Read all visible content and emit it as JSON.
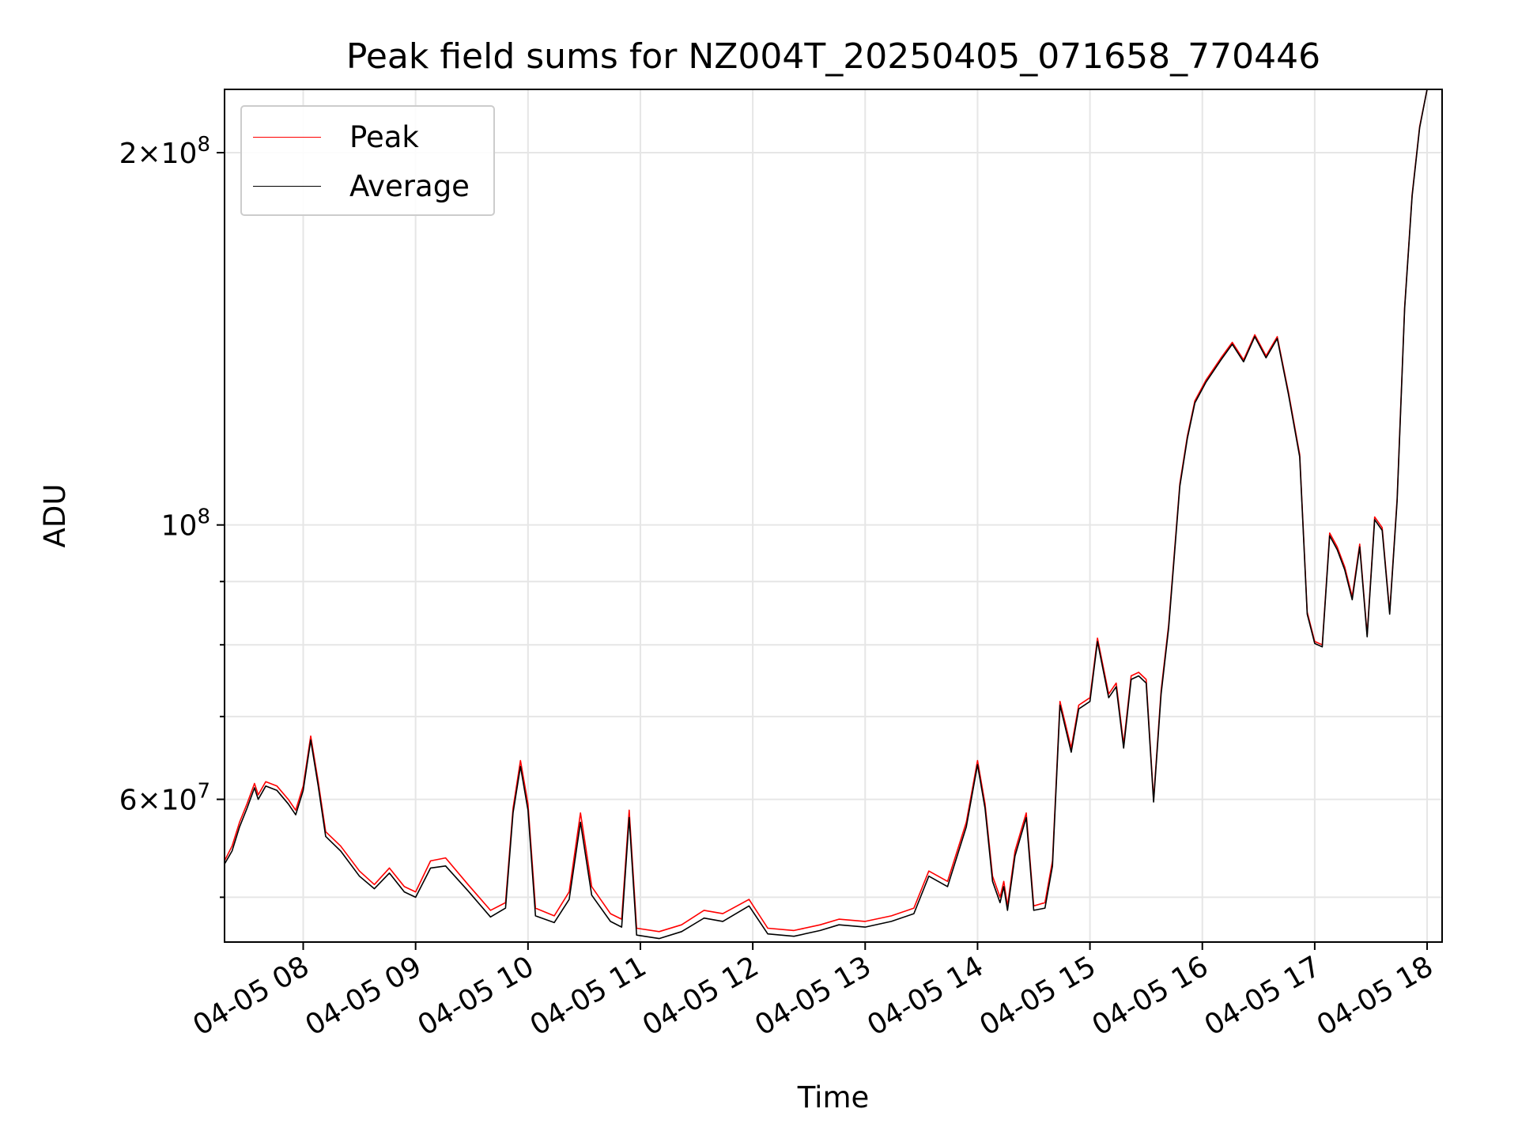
{
  "chart_data": {
    "type": "line",
    "title": "Peak field sums for NZ004T_20250405_071658_770446",
    "xlabel": "Time",
    "ylabel": "ADU",
    "y_scale": "log",
    "ylim": [
      46000000,
      225000000
    ],
    "xlim": [
      "2025-04-05 07:18",
      "2025-04-05 18:08"
    ],
    "x_ticks": [
      {
        "label": "04-05 08",
        "t": "2025-04-05 08:00"
      },
      {
        "label": "04-05 09",
        "t": "2025-04-05 09:00"
      },
      {
        "label": "04-05 10",
        "t": "2025-04-05 10:00"
      },
      {
        "label": "04-05 11",
        "t": "2025-04-05 11:00"
      },
      {
        "label": "04-05 12",
        "t": "2025-04-05 12:00"
      },
      {
        "label": "04-05 13",
        "t": "2025-04-05 13:00"
      },
      {
        "label": "04-05 14",
        "t": "2025-04-05 14:00"
      },
      {
        "label": "04-05 15",
        "t": "2025-04-05 15:00"
      },
      {
        "label": "04-05 16",
        "t": "2025-04-05 16:00"
      },
      {
        "label": "04-05 17",
        "t": "2025-04-05 17:00"
      },
      {
        "label": "04-05 18",
        "t": "2025-04-05 18:00"
      }
    ],
    "y_ticks": [
      {
        "base": "6",
        "exp": "7",
        "value": 60000000
      },
      {
        "base": "",
        "exp": "8",
        "value": 100000000
      },
      {
        "base": "2",
        "exp": "8",
        "value": 200000000
      }
    ],
    "y_minor_ticks": [
      50000000,
      70000000,
      80000000,
      90000000
    ],
    "grid": true,
    "legend_position": "upper-left",
    "series": [
      {
        "name": "Peak",
        "color": "#ff0000",
        "points": [
          [
            "2025-04-05 07:18",
            53500000
          ],
          [
            "2025-04-05 07:22",
            55000000
          ],
          [
            "2025-04-05 07:26",
            57500000
          ],
          [
            "2025-04-05 07:30",
            59500000
          ],
          [
            "2025-04-05 07:34",
            61800000
          ],
          [
            "2025-04-05 07:36",
            60500000
          ],
          [
            "2025-04-05 07:40",
            62000000
          ],
          [
            "2025-04-05 07:46",
            61500000
          ],
          [
            "2025-04-05 07:52",
            60000000
          ],
          [
            "2025-04-05 07:56",
            58800000
          ],
          [
            "2025-04-05 08:00",
            61500000
          ],
          [
            "2025-04-05 08:04",
            67500000
          ],
          [
            "2025-04-05 08:08",
            62000000
          ],
          [
            "2025-04-05 08:12",
            56500000
          ],
          [
            "2025-04-05 08:20",
            55000000
          ],
          [
            "2025-04-05 08:30",
            52500000
          ],
          [
            "2025-04-05 08:38",
            51200000
          ],
          [
            "2025-04-05 08:46",
            52800000
          ],
          [
            "2025-04-05 08:54",
            51000000
          ],
          [
            "2025-04-05 09:00",
            50500000
          ],
          [
            "2025-04-05 09:08",
            53500000
          ],
          [
            "2025-04-05 09:16",
            53800000
          ],
          [
            "2025-04-05 09:28",
            51200000
          ],
          [
            "2025-04-05 09:40",
            48800000
          ],
          [
            "2025-04-05 09:48",
            49500000
          ],
          [
            "2025-04-05 09:52",
            59000000
          ],
          [
            "2025-04-05 09:56",
            64500000
          ],
          [
            "2025-04-05 10:00",
            59500000
          ],
          [
            "2025-04-05 10:04",
            49000000
          ],
          [
            "2025-04-05 10:14",
            48300000
          ],
          [
            "2025-04-05 10:22",
            50500000
          ],
          [
            "2025-04-05 10:28",
            58500000
          ],
          [
            "2025-04-05 10:34",
            51000000
          ],
          [
            "2025-04-05 10:44",
            48500000
          ],
          [
            "2025-04-05 10:50",
            48000000
          ],
          [
            "2025-04-05 10:54",
            58800000
          ],
          [
            "2025-04-05 10:58",
            47200000
          ],
          [
            "2025-04-05 11:10",
            46900000
          ],
          [
            "2025-04-05 11:22",
            47500000
          ],
          [
            "2025-04-05 11:34",
            48800000
          ],
          [
            "2025-04-05 11:44",
            48500000
          ],
          [
            "2025-04-05 11:58",
            49800000
          ],
          [
            "2025-04-05 12:08",
            47200000
          ],
          [
            "2025-04-05 12:22",
            47000000
          ],
          [
            "2025-04-05 12:36",
            47500000
          ],
          [
            "2025-04-05 12:46",
            48000000
          ],
          [
            "2025-04-05 13:00",
            47800000
          ],
          [
            "2025-04-05 13:14",
            48300000
          ],
          [
            "2025-04-05 13:26",
            49000000
          ],
          [
            "2025-04-05 13:34",
            52500000
          ],
          [
            "2025-04-05 13:44",
            51500000
          ],
          [
            "2025-04-05 13:54",
            57500000
          ],
          [
            "2025-04-05 14:00",
            64500000
          ],
          [
            "2025-04-05 14:04",
            59500000
          ],
          [
            "2025-04-05 14:08",
            52000000
          ],
          [
            "2025-04-05 14:12",
            50000000
          ],
          [
            "2025-04-05 14:14",
            51500000
          ],
          [
            "2025-04-05 14:16",
            49200000
          ],
          [
            "2025-04-05 14:20",
            54500000
          ],
          [
            "2025-04-05 14:26",
            58500000
          ],
          [
            "2025-04-05 14:30",
            49200000
          ],
          [
            "2025-04-05 14:36",
            49500000
          ],
          [
            "2025-04-05 14:40",
            53500000
          ],
          [
            "2025-04-05 14:44",
            72000000
          ],
          [
            "2025-04-05 14:50",
            66000000
          ],
          [
            "2025-04-05 14:54",
            71500000
          ],
          [
            "2025-04-05 15:00",
            72500000
          ],
          [
            "2025-04-05 15:04",
            81000000
          ],
          [
            "2025-04-05 15:10",
            73000000
          ],
          [
            "2025-04-05 15:14",
            74500000
          ],
          [
            "2025-04-05 15:18",
            66500000
          ],
          [
            "2025-04-05 15:22",
            75500000
          ],
          [
            "2025-04-05 15:26",
            76000000
          ],
          [
            "2025-04-05 15:30",
            75000000
          ],
          [
            "2025-04-05 15:34",
            60000000
          ],
          [
            "2025-04-05 15:38",
            73500000
          ],
          [
            "2025-04-05 15:42",
            83000000
          ],
          [
            "2025-04-05 15:48",
            108000000
          ],
          [
            "2025-04-05 15:52",
            118000000
          ],
          [
            "2025-04-05 15:56",
            126000000
          ],
          [
            "2025-04-05 16:02",
            131000000
          ],
          [
            "2025-04-05 16:10",
            136500000
          ],
          [
            "2025-04-05 16:16",
            140500000
          ],
          [
            "2025-04-05 16:22",
            136000000
          ],
          [
            "2025-04-05 16:28",
            142500000
          ],
          [
            "2025-04-05 16:34",
            137000000
          ],
          [
            "2025-04-05 16:40",
            142000000
          ],
          [
            "2025-04-05 16:46",
            128000000
          ],
          [
            "2025-04-05 16:52",
            114000000
          ],
          [
            "2025-04-05 16:56",
            85000000
          ],
          [
            "2025-04-05 17:00",
            80500000
          ],
          [
            "2025-04-05 17:04",
            80000000
          ],
          [
            "2025-04-05 17:08",
            98500000
          ],
          [
            "2025-04-05 17:12",
            96000000
          ],
          [
            "2025-04-05 17:16",
            92500000
          ],
          [
            "2025-04-05 17:20",
            87500000
          ],
          [
            "2025-04-05 17:24",
            96500000
          ],
          [
            "2025-04-05 17:28",
            81500000
          ],
          [
            "2025-04-05 17:32",
            101500000
          ],
          [
            "2025-04-05 17:36",
            99500000
          ],
          [
            "2025-04-05 17:40",
            85000000
          ],
          [
            "2025-04-05 17:44",
            105000000
          ],
          [
            "2025-04-05 17:48",
            150000000
          ],
          [
            "2025-04-05 17:52",
            185000000
          ],
          [
            "2025-04-05 17:56",
            210000000
          ],
          [
            "2025-04-05 18:00",
            225000000
          ]
        ]
      },
      {
        "name": "Average",
        "color": "#000000",
        "points": [
          [
            "2025-04-05 07:18",
            53200000
          ],
          [
            "2025-04-05 07:22",
            54500000
          ],
          [
            "2025-04-05 07:26",
            57000000
          ],
          [
            "2025-04-05 07:30",
            59000000
          ],
          [
            "2025-04-05 07:34",
            61300000
          ],
          [
            "2025-04-05 07:36",
            60000000
          ],
          [
            "2025-04-05 07:40",
            61500000
          ],
          [
            "2025-04-05 07:46",
            61000000
          ],
          [
            "2025-04-05 07:52",
            59500000
          ],
          [
            "2025-04-05 07:56",
            58300000
          ],
          [
            "2025-04-05 08:00",
            61000000
          ],
          [
            "2025-04-05 08:04",
            67000000
          ],
          [
            "2025-04-05 08:08",
            61500000
          ],
          [
            "2025-04-05 08:12",
            56000000
          ],
          [
            "2025-04-05 08:20",
            54500000
          ],
          [
            "2025-04-05 08:30",
            52000000
          ],
          [
            "2025-04-05 08:38",
            50800000
          ],
          [
            "2025-04-05 08:46",
            52300000
          ],
          [
            "2025-04-05 08:54",
            50500000
          ],
          [
            "2025-04-05 09:00",
            50000000
          ],
          [
            "2025-04-05 09:08",
            52800000
          ],
          [
            "2025-04-05 09:16",
            53000000
          ],
          [
            "2025-04-05 09:28",
            50600000
          ],
          [
            "2025-04-05 09:40",
            48200000
          ],
          [
            "2025-04-05 09:48",
            49000000
          ],
          [
            "2025-04-05 09:52",
            58500000
          ],
          [
            "2025-04-05 09:56",
            63800000
          ],
          [
            "2025-04-05 10:00",
            58800000
          ],
          [
            "2025-04-05 10:04",
            48300000
          ],
          [
            "2025-04-05 10:14",
            47700000
          ],
          [
            "2025-04-05 10:22",
            49800000
          ],
          [
            "2025-04-05 10:28",
            57500000
          ],
          [
            "2025-04-05 10:34",
            50200000
          ],
          [
            "2025-04-05 10:44",
            47800000
          ],
          [
            "2025-04-05 10:50",
            47300000
          ],
          [
            "2025-04-05 10:54",
            58000000
          ],
          [
            "2025-04-05 10:58",
            46600000
          ],
          [
            "2025-04-05 11:10",
            46300000
          ],
          [
            "2025-04-05 11:22",
            46900000
          ],
          [
            "2025-04-05 11:34",
            48100000
          ],
          [
            "2025-04-05 11:44",
            47800000
          ],
          [
            "2025-04-05 11:58",
            49200000
          ],
          [
            "2025-04-05 12:08",
            46700000
          ],
          [
            "2025-04-05 12:22",
            46500000
          ],
          [
            "2025-04-05 12:36",
            47000000
          ],
          [
            "2025-04-05 12:46",
            47500000
          ],
          [
            "2025-04-05 13:00",
            47300000
          ],
          [
            "2025-04-05 13:14",
            47800000
          ],
          [
            "2025-04-05 13:26",
            48500000
          ],
          [
            "2025-04-05 13:34",
            52000000
          ],
          [
            "2025-04-05 13:44",
            51000000
          ],
          [
            "2025-04-05 13:54",
            57000000
          ],
          [
            "2025-04-05 14:00",
            64000000
          ],
          [
            "2025-04-05 14:04",
            59000000
          ],
          [
            "2025-04-05 14:08",
            51500000
          ],
          [
            "2025-04-05 14:12",
            49500000
          ],
          [
            "2025-04-05 14:14",
            51000000
          ],
          [
            "2025-04-05 14:16",
            48800000
          ],
          [
            "2025-04-05 14:20",
            54000000
          ],
          [
            "2025-04-05 14:26",
            58000000
          ],
          [
            "2025-04-05 14:30",
            48800000
          ],
          [
            "2025-04-05 14:36",
            49000000
          ],
          [
            "2025-04-05 14:40",
            53000000
          ],
          [
            "2025-04-05 14:44",
            71500000
          ],
          [
            "2025-04-05 14:50",
            65500000
          ],
          [
            "2025-04-05 14:54",
            71000000
          ],
          [
            "2025-04-05 15:00",
            72000000
          ],
          [
            "2025-04-05 15:04",
            80500000
          ],
          [
            "2025-04-05 15:10",
            72500000
          ],
          [
            "2025-04-05 15:14",
            74000000
          ],
          [
            "2025-04-05 15:18",
            66000000
          ],
          [
            "2025-04-05 15:22",
            75000000
          ],
          [
            "2025-04-05 15:26",
            75500000
          ],
          [
            "2025-04-05 15:30",
            74500000
          ],
          [
            "2025-04-05 15:34",
            59700000
          ],
          [
            "2025-04-05 15:38",
            73000000
          ],
          [
            "2025-04-05 15:42",
            82500000
          ],
          [
            "2025-04-05 15:48",
            107500000
          ],
          [
            "2025-04-05 15:52",
            117500000
          ],
          [
            "2025-04-05 15:56",
            125500000
          ],
          [
            "2025-04-05 16:02",
            130500000
          ],
          [
            "2025-04-05 16:10",
            136000000
          ],
          [
            "2025-04-05 16:16",
            140000000
          ],
          [
            "2025-04-05 16:22",
            135500000
          ],
          [
            "2025-04-05 16:28",
            142000000
          ],
          [
            "2025-04-05 16:34",
            136500000
          ],
          [
            "2025-04-05 16:40",
            141500000
          ],
          [
            "2025-04-05 16:46",
            127500000
          ],
          [
            "2025-04-05 16:52",
            113500000
          ],
          [
            "2025-04-05 16:56",
            84700000
          ],
          [
            "2025-04-05 17:00",
            80200000
          ],
          [
            "2025-04-05 17:04",
            79700000
          ],
          [
            "2025-04-05 17:08",
            98000000
          ],
          [
            "2025-04-05 17:12",
            95500000
          ],
          [
            "2025-04-05 17:16",
            92000000
          ],
          [
            "2025-04-05 17:20",
            87000000
          ],
          [
            "2025-04-05 17:24",
            96000000
          ],
          [
            "2025-04-05 17:28",
            81200000
          ],
          [
            "2025-04-05 17:32",
            101000000
          ],
          [
            "2025-04-05 17:36",
            99000000
          ],
          [
            "2025-04-05 17:40",
            84700000
          ],
          [
            "2025-04-05 17:44",
            104500000
          ],
          [
            "2025-04-05 17:48",
            149500000
          ],
          [
            "2025-04-05 17:52",
            184500000
          ],
          [
            "2025-04-05 17:56",
            209500000
          ],
          [
            "2025-04-05 18:00",
            225000000
          ]
        ]
      }
    ]
  }
}
